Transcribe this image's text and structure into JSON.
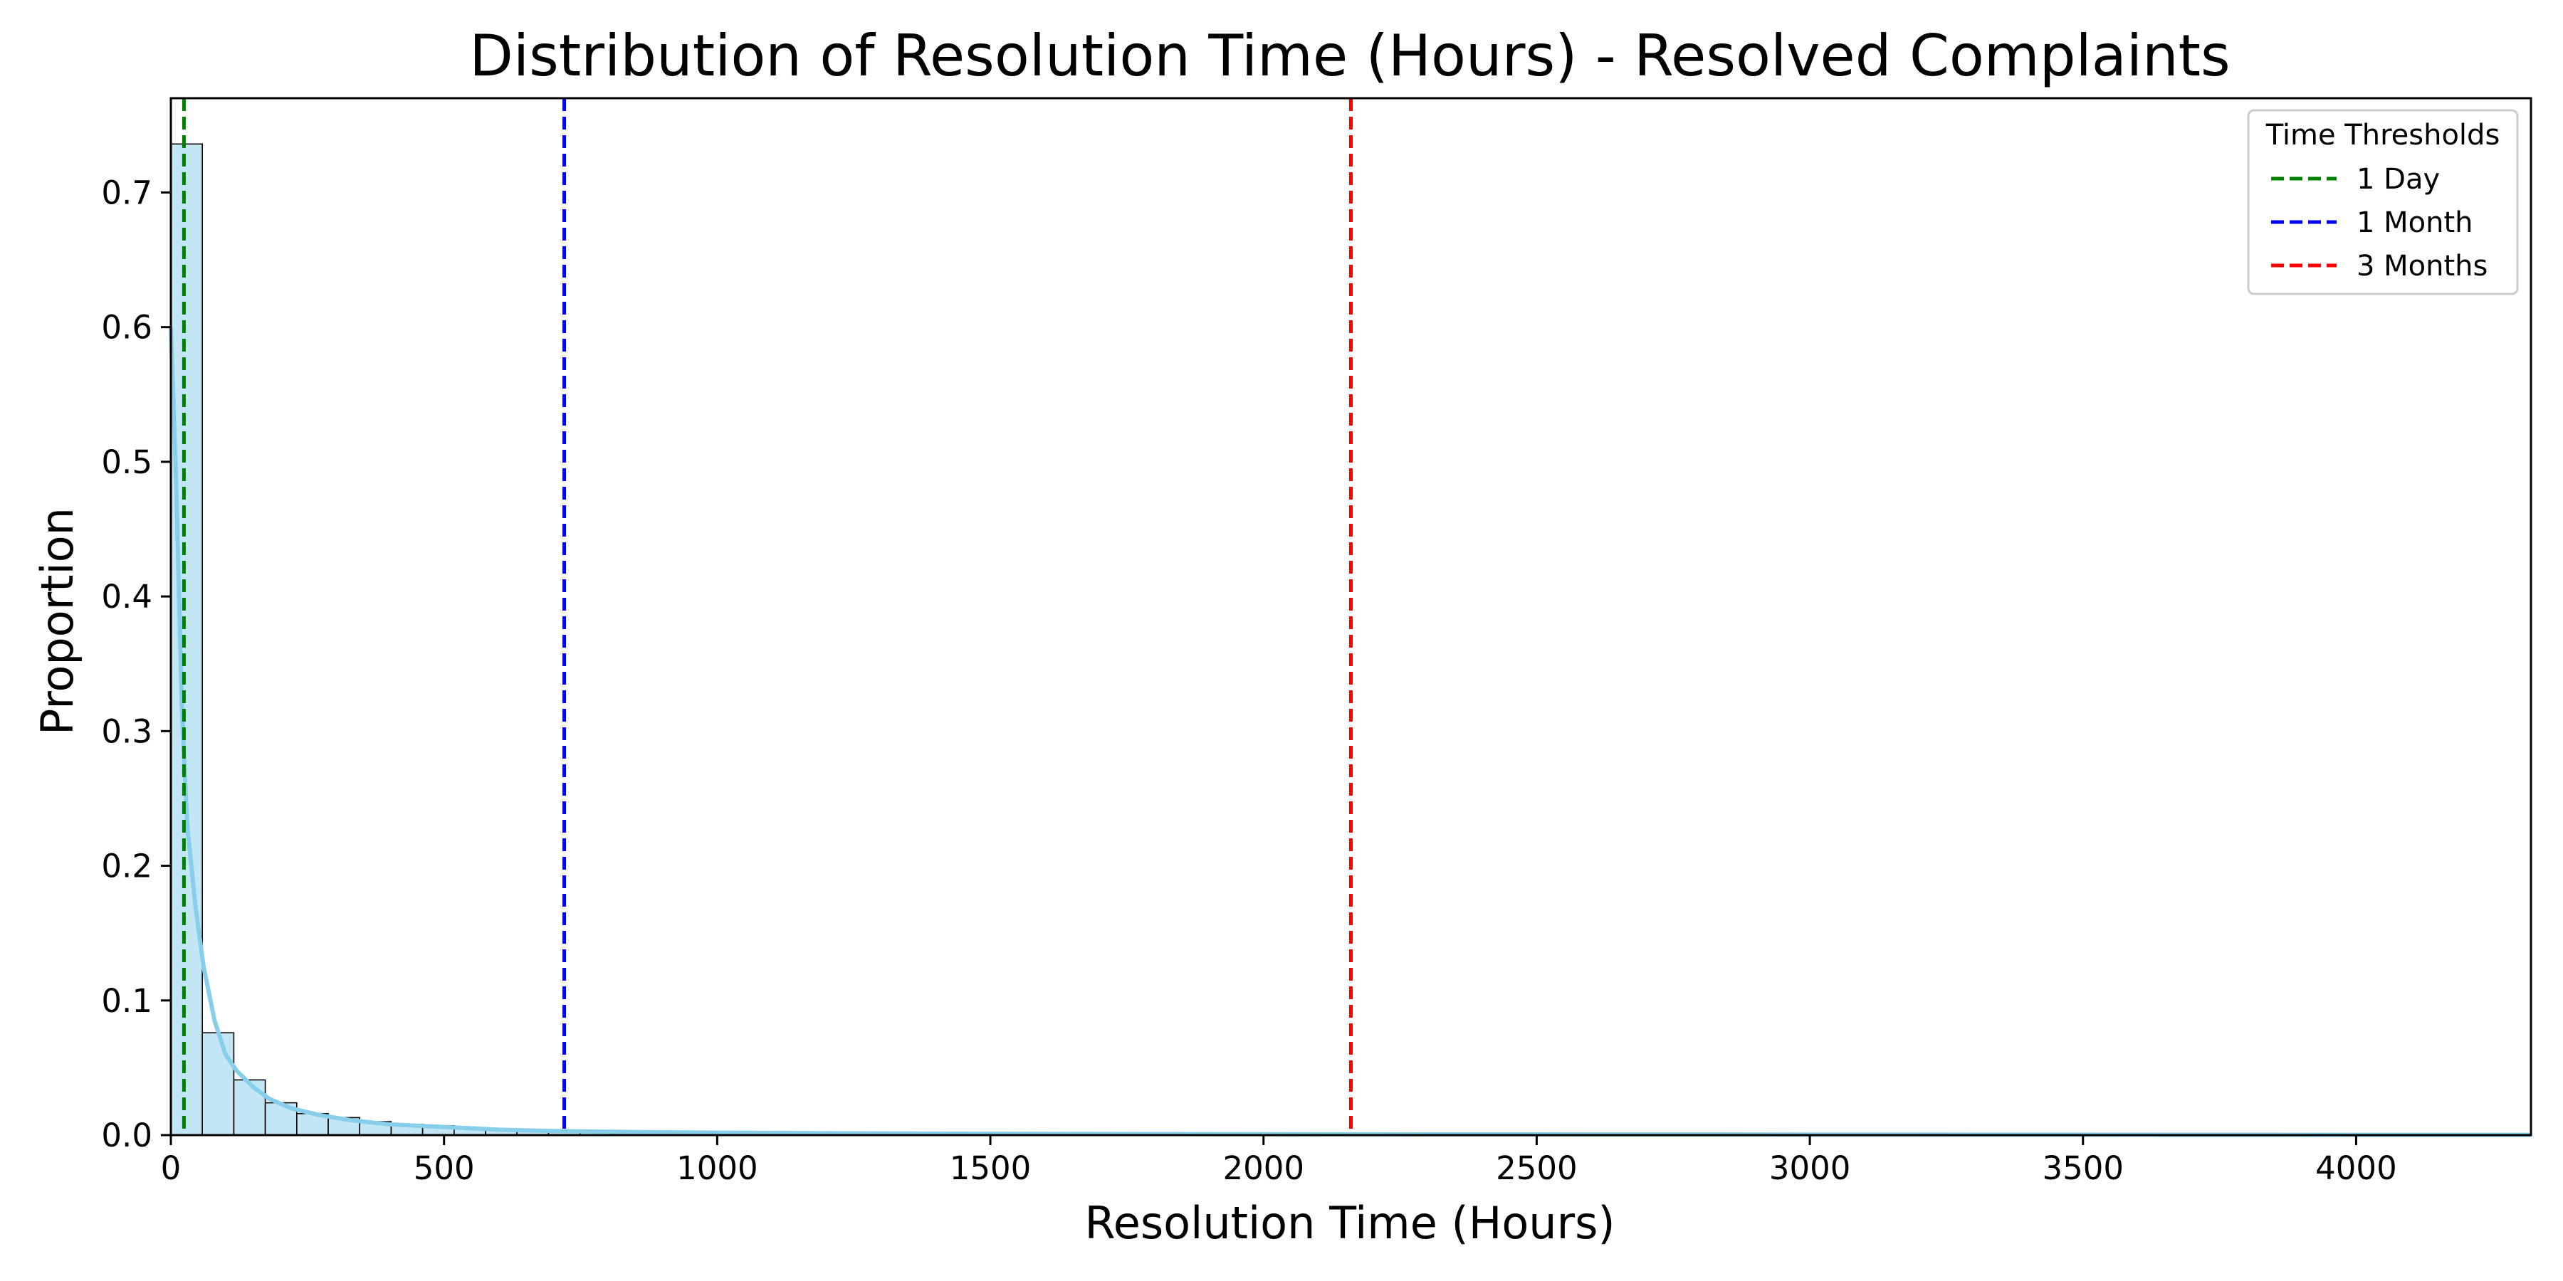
{
  "chart_data": {
    "type": "bar",
    "title": "Distribution of Resolution Time (Hours) - Resolved Complaints",
    "xlabel": "Resolution Time (Hours)",
    "ylabel": "Proportion",
    "xlim": [
      0,
      4320
    ],
    "ylim": [
      0,
      0.77
    ],
    "xticks": [
      0,
      500,
      1000,
      1500,
      2000,
      2500,
      3000,
      3500,
      4000
    ],
    "xtick_labels": [
      "0",
      "500",
      "1000",
      "1500",
      "2000",
      "2500",
      "3000",
      "3500",
      "4000"
    ],
    "yticks": [
      0,
      0.1,
      0.2,
      0.3,
      0.4,
      0.5,
      0.6,
      0.7
    ],
    "ytick_labels": [
      "0.0",
      "0.1",
      "0.2",
      "0.3",
      "0.4",
      "0.5",
      "0.6",
      "0.7"
    ],
    "grid": false,
    "histogram": {
      "bin_width": 57.6,
      "bin_edges_start": 0,
      "values": [
        0.736,
        0.076,
        0.041,
        0.024,
        0.016,
        0.013,
        0.01,
        0.008,
        0.007,
        0.005,
        0.004,
        0.004,
        0.003,
        0.003,
        0.002,
        0.002,
        0.002,
        0.002,
        0.001,
        0.001,
        0.001,
        0.001,
        0.001,
        0.001,
        0.001,
        0.0008,
        0.0008,
        0.0007,
        0.0007,
        0.0006,
        0.0006,
        0.0005,
        0.0005,
        0.0005,
        0.0004,
        0.0004,
        0.0004,
        0.0003,
        0.0003,
        0.0003,
        0.0003,
        0.0003,
        0.0002,
        0.0002,
        0.0002,
        0.0002,
        0.0002,
        0.0002,
        0.0002,
        0.0002,
        0.0001,
        0.0001,
        0.0001,
        0.0001,
        0.0001,
        0.0001,
        0.0001,
        0.0001,
        0.0001,
        0.0001,
        0.0001,
        0.0001,
        0.0001,
        0.0001,
        0.0001,
        0.0001,
        0.0001,
        0.0001,
        0.0001,
        0.0001,
        0.0001,
        0.0001,
        0.0001,
        0.0001,
        0.0001
      ],
      "fill_color": "#87ceeb",
      "fill_opacity": 0.5,
      "edge_color": "#000000"
    },
    "kde": {
      "color": "#87ceeb",
      "x": [
        0,
        10,
        20,
        30,
        45,
        60,
        80,
        100,
        120,
        150,
        180,
        220,
        270,
        330,
        400,
        500,
        600,
        700,
        800,
        1000,
        1200,
        1500,
        1800,
        2200,
        2600,
        3000,
        3500,
        4000,
        4320
      ],
      "y": [
        0.6,
        0.48,
        0.32,
        0.23,
        0.17,
        0.125,
        0.085,
        0.06,
        0.048,
        0.036,
        0.027,
        0.02,
        0.015,
        0.011,
        0.008,
        0.006,
        0.004,
        0.003,
        0.0025,
        0.0018,
        0.0014,
        0.001,
        0.0008,
        0.0006,
        0.0005,
        0.0004,
        0.0003,
        0.0002,
        0.0002
      ]
    },
    "thresholds": [
      {
        "name": "1 Day",
        "x": 24,
        "color": "#008000"
      },
      {
        "name": "1 Month",
        "x": 720,
        "color": "#0000ff"
      },
      {
        "name": "3 Months",
        "x": 2160,
        "color": "#ff0000"
      }
    ],
    "legend": {
      "title": "Time Thresholds",
      "placement": "top-right"
    }
  }
}
